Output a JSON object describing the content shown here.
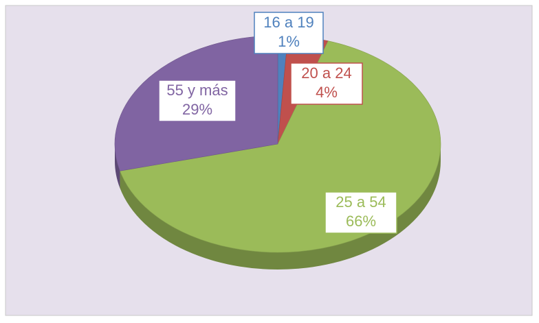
{
  "chart_data": {
    "type": "pie",
    "categories": [
      "16 a 19",
      "20 a 24",
      "25 a 54",
      "55 y más"
    ],
    "values": [
      1,
      4,
      66,
      29
    ],
    "value_labels": [
      "1%",
      "4%",
      "66%",
      "29%"
    ],
    "colors": [
      "#4f81bd",
      "#c0504d",
      "#9bbb59",
      "#8064a2"
    ]
  }
}
